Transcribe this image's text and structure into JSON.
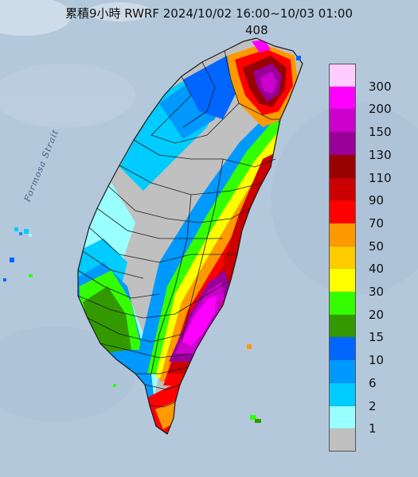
{
  "title": "累積9小時 RWRF 2024/10/02 16:00~10/03 01:00",
  "max_value_label": "408",
  "strait_label": "Formosa Strait",
  "legend": {
    "items": [
      {
        "label": "300",
        "color": "#ffccff"
      },
      {
        "label": "200",
        "color": "#ff00ff"
      },
      {
        "label": "150",
        "color": "#cc00cc"
      },
      {
        "label": "130",
        "color": "#990099"
      },
      {
        "label": "110",
        "color": "#990000"
      },
      {
        "label": "90",
        "color": "#cc0000"
      },
      {
        "label": "70",
        "color": "#ff0000"
      },
      {
        "label": "50",
        "color": "#ff9900"
      },
      {
        "label": "40",
        "color": "#ffcc00"
      },
      {
        "label": "30",
        "color": "#ffff00"
      },
      {
        "label": "20",
        "color": "#33ff00"
      },
      {
        "label": "15",
        "color": "#339900"
      },
      {
        "label": "10",
        "color": "#0066ff"
      },
      {
        "label": "6",
        "color": "#0099ff"
      },
      {
        "label": "2",
        "color": "#00ccff"
      },
      {
        "label": "1",
        "color": "#99ffff"
      },
      {
        "label": "",
        "color": "#c0c0c0"
      }
    ]
  },
  "colors": {
    "sea": "#b4c8dc",
    "land_no_rain": "#c8c8c8",
    "county_border": "#1a1a1a"
  }
}
